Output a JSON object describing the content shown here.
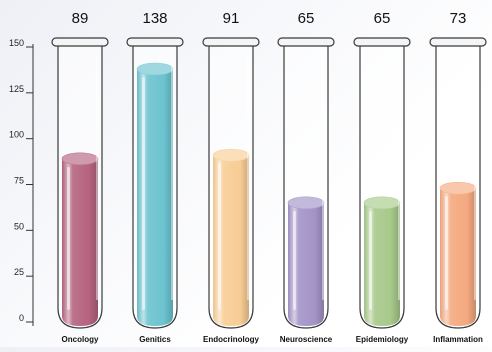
{
  "chart_data": {
    "type": "bar",
    "categories": [
      "Oncology",
      "Genitics",
      "Endocrinology",
      "Neuroscience",
      "Epidemiology",
      "Inflammation"
    ],
    "values": [
      89,
      138,
      91,
      65,
      65,
      73
    ],
    "value_labels": [
      "89",
      "138",
      "91",
      "65",
      "65",
      "73"
    ],
    "ylim": [
      0,
      150
    ],
    "yticks": [
      0,
      25,
      50,
      75,
      100,
      125,
      150
    ],
    "ytick_labels": [
      "0",
      "25",
      "50",
      "75",
      "100",
      "125",
      "150"
    ],
    "title": "",
    "xlabel": "",
    "ylabel": "",
    "grid": false,
    "legend": "none",
    "colors": [
      "#b5637f",
      "#6cc3cf",
      "#f8cd95",
      "#a393c7",
      "#a7c98a",
      "#f4a97f"
    ]
  }
}
